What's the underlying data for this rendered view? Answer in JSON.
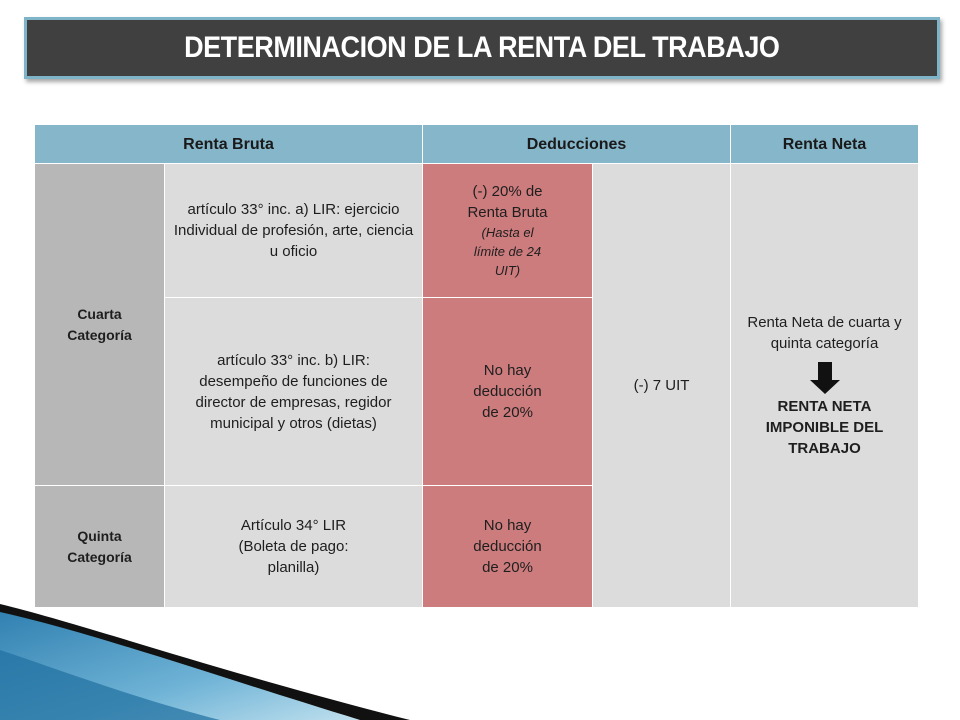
{
  "title": "DETERMINACION DE LA RENTA DEL TRABAJO",
  "headers": {
    "renta_bruta": "Renta Bruta",
    "deducciones": "Deducciones",
    "renta_neta": "Renta Neta"
  },
  "rows": {
    "cuarta": {
      "category": "Cuarta Categoría",
      "a_text": "artículo 33° inc. a) LIR: ejercicio Individual de profesión, arte, ciencia u oficio",
      "a_deduction": "(-) 20% de Renta Bruta",
      "a_deduction_note": "(Hasta el límite de 24 UIT)",
      "b_text": "artículo 33° inc. b) LIR: desempeño de funciones de director de empresas, regidor municipal y otros (dietas)",
      "b_deduction": "No hay deducción de 20%"
    },
    "quinta": {
      "category": "Quinta Categoría",
      "text": "Artículo 34° LIR (Boleta de pago: planilla)",
      "deduction": "No hay deducción de 20%"
    }
  },
  "common_deduction": "(-) 7 UIT",
  "renta_neta": {
    "text": "Renta Neta de cuarta y quinta categoría",
    "arrow_icon": "arrow-down-icon",
    "result": "RENTA NETA IMPONIBLE DEL TRABAJO"
  }
}
